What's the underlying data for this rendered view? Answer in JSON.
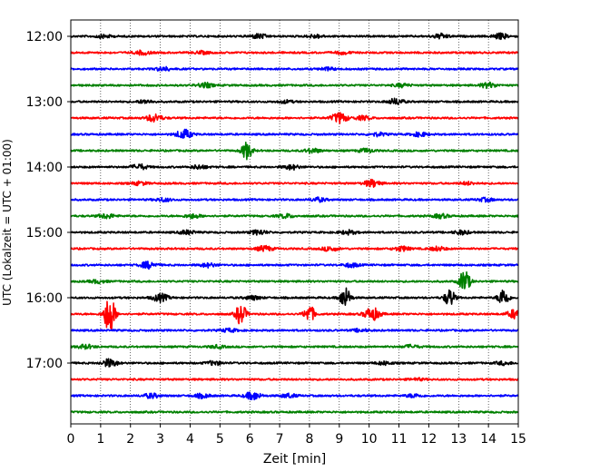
{
  "chart_data": {
    "type": "line",
    "title": "",
    "xlabel": "Zeit  [min]",
    "ylabel": "UTC (Lokalzeit = UTC + 01:00)",
    "xlim": [
      0,
      15
    ],
    "xticks": [
      0,
      1,
      2,
      3,
      4,
      5,
      6,
      7,
      8,
      9,
      10,
      11,
      12,
      13,
      14,
      15
    ],
    "xtick_labels": [
      "0",
      "1",
      "2",
      "3",
      "4",
      "5",
      "6",
      "7",
      "8",
      "9",
      "10",
      "11",
      "12",
      "13",
      "14",
      "15"
    ],
    "ytick_labels": [
      "12:00",
      "13:00",
      "14:00",
      "15:00",
      "16:00",
      "17:00"
    ],
    "ytick_rows": [
      0,
      4,
      8,
      12,
      16,
      20
    ],
    "grid": "vertical dotted at each minute",
    "row_interval_minutes": 15,
    "row_colors": [
      "#000000",
      "#ff0000",
      "#0000ff",
      "#008000"
    ],
    "rows": [
      {
        "start": "12:00",
        "color": "#000000",
        "events": [
          {
            "t": 1.1,
            "a": 0.25
          },
          {
            "t": 6.3,
            "a": 0.35
          },
          {
            "t": 8.2,
            "a": 0.25
          },
          {
            "t": 12.4,
            "a": 0.35
          },
          {
            "t": 14.4,
            "a": 0.4
          }
        ]
      },
      {
        "start": "12:15",
        "color": "#ff0000",
        "events": [
          {
            "t": 2.4,
            "a": 0.3
          },
          {
            "t": 4.4,
            "a": 0.2
          },
          {
            "t": 9.1,
            "a": 0.2
          }
        ]
      },
      {
        "start": "12:30",
        "color": "#0000ff",
        "events": [
          {
            "t": 3.1,
            "a": 0.3
          },
          {
            "t": 8.6,
            "a": 0.2
          }
        ]
      },
      {
        "start": "12:45",
        "color": "#008000",
        "events": [
          {
            "t": 4.5,
            "a": 0.35
          },
          {
            "t": 11.1,
            "a": 0.25
          },
          {
            "t": 14.0,
            "a": 0.4
          }
        ]
      },
      {
        "start": "13:00",
        "color": "#000000",
        "events": [
          {
            "t": 2.5,
            "a": 0.25
          },
          {
            "t": 7.2,
            "a": 0.2
          },
          {
            "t": 10.9,
            "a": 0.45
          }
        ]
      },
      {
        "start": "13:15",
        "color": "#ff0000",
        "events": [
          {
            "t": 2.8,
            "a": 0.6
          },
          {
            "t": 9.0,
            "a": 0.8
          },
          {
            "t": 9.8,
            "a": 0.3
          }
        ]
      },
      {
        "start": "13:30",
        "color": "#0000ff",
        "events": [
          {
            "t": 3.8,
            "a": 0.7
          },
          {
            "t": 10.3,
            "a": 0.25
          },
          {
            "t": 11.7,
            "a": 0.3
          }
        ]
      },
      {
        "start": "13:45",
        "color": "#008000",
        "events": [
          {
            "t": 5.9,
            "a": 1.3
          },
          {
            "t": 8.1,
            "a": 0.35
          },
          {
            "t": 9.9,
            "a": 0.3
          }
        ]
      },
      {
        "start": "14:00",
        "color": "#000000",
        "events": [
          {
            "t": 2.3,
            "a": 0.4
          },
          {
            "t": 4.3,
            "a": 0.3
          },
          {
            "t": 7.4,
            "a": 0.35
          }
        ]
      },
      {
        "start": "14:15",
        "color": "#ff0000",
        "events": [
          {
            "t": 2.3,
            "a": 0.25
          },
          {
            "t": 10.1,
            "a": 0.55
          },
          {
            "t": 13.3,
            "a": 0.2
          }
        ]
      },
      {
        "start": "14:30",
        "color": "#0000ff",
        "events": [
          {
            "t": 3.1,
            "a": 0.25
          },
          {
            "t": 8.3,
            "a": 0.3
          },
          {
            "t": 13.9,
            "a": 0.25
          }
        ]
      },
      {
        "start": "14:45",
        "color": "#008000",
        "events": [
          {
            "t": 1.2,
            "a": 0.35
          },
          {
            "t": 4.1,
            "a": 0.3
          },
          {
            "t": 7.2,
            "a": 0.3
          },
          {
            "t": 12.4,
            "a": 0.3
          }
        ]
      },
      {
        "start": "15:00",
        "color": "#000000",
        "events": [
          {
            "t": 3.9,
            "a": 0.3
          },
          {
            "t": 6.3,
            "a": 0.35
          },
          {
            "t": 9.3,
            "a": 0.3
          },
          {
            "t": 13.1,
            "a": 0.3
          }
        ]
      },
      {
        "start": "15:15",
        "color": "#ff0000",
        "events": [
          {
            "t": 6.5,
            "a": 0.4
          },
          {
            "t": 8.7,
            "a": 0.35
          },
          {
            "t": 11.1,
            "a": 0.35
          },
          {
            "t": 12.3,
            "a": 0.3
          }
        ]
      },
      {
        "start": "15:30",
        "color": "#0000ff",
        "events": [
          {
            "t": 2.6,
            "a": 0.5
          },
          {
            "t": 4.6,
            "a": 0.3
          },
          {
            "t": 9.4,
            "a": 0.3
          }
        ]
      },
      {
        "start": "15:45",
        "color": "#008000",
        "events": [
          {
            "t": 13.2,
            "a": 1.8
          },
          {
            "t": 0.9,
            "a": 0.25
          }
        ]
      },
      {
        "start": "16:00",
        "color": "#000000",
        "events": [
          {
            "t": 3.0,
            "a": 0.6
          },
          {
            "t": 9.2,
            "a": 1.6
          },
          {
            "t": 12.7,
            "a": 1.3
          },
          {
            "t": 14.5,
            "a": 1.4
          },
          {
            "t": 6.1,
            "a": 0.3
          }
        ]
      },
      {
        "start": "16:15",
        "color": "#ff0000",
        "events": [
          {
            "t": 1.3,
            "a": 3.2
          },
          {
            "t": 5.7,
            "a": 1.6
          },
          {
            "t": 8.0,
            "a": 1.3
          },
          {
            "t": 10.1,
            "a": 1.0
          },
          {
            "t": 14.9,
            "a": 0.7
          }
        ]
      },
      {
        "start": "16:30",
        "color": "#0000ff",
        "events": [
          {
            "t": 5.3,
            "a": 0.25
          },
          {
            "t": 9.7,
            "a": 0.2
          }
        ]
      },
      {
        "start": "16:45",
        "color": "#008000",
        "events": [
          {
            "t": 0.5,
            "a": 0.3
          },
          {
            "t": 4.9,
            "a": 0.2
          },
          {
            "t": 11.4,
            "a": 0.25
          }
        ]
      },
      {
        "start": "17:00",
        "color": "#000000",
        "events": [
          {
            "t": 1.3,
            "a": 0.6
          },
          {
            "t": 4.8,
            "a": 0.3
          },
          {
            "t": 10.5,
            "a": 0.25
          },
          {
            "t": 14.5,
            "a": 0.25
          }
        ]
      },
      {
        "start": "17:15",
        "color": "#ff0000",
        "events": [
          {
            "t": 11.6,
            "a": 0.15
          }
        ]
      },
      {
        "start": "17:30",
        "color": "#0000ff",
        "events": [
          {
            "t": 2.7,
            "a": 0.35
          },
          {
            "t": 4.4,
            "a": 0.3
          },
          {
            "t": 6.1,
            "a": 0.6
          },
          {
            "t": 7.3,
            "a": 0.3
          },
          {
            "t": 11.5,
            "a": 0.25
          }
        ]
      },
      {
        "start": "17:45",
        "color": "#008000",
        "events": []
      }
    ]
  }
}
